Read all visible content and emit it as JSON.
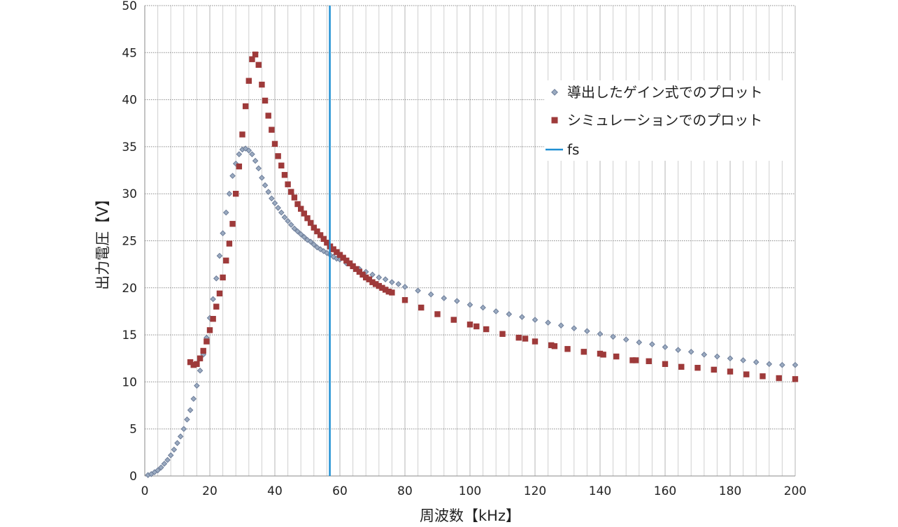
{
  "chart_data": {
    "type": "scatter",
    "title": "",
    "xlabel": "周波数【kHz】",
    "ylabel": "出力電圧【V】",
    "xlim": [
      0,
      200
    ],
    "ylim": [
      0,
      50
    ],
    "x_ticks": [
      0,
      20,
      40,
      60,
      80,
      100,
      120,
      140,
      160,
      180,
      200
    ],
    "y_ticks": [
      0,
      5,
      10,
      15,
      20,
      25,
      30,
      35,
      40,
      45,
      50
    ],
    "grid": true,
    "legend_position": "top-right",
    "series": [
      {
        "name": "導出したゲイン式でのプロット",
        "marker": "diamond",
        "color": "#9aaac0",
        "edge_color": "#6d7d99",
        "x": [
          1,
          2,
          3,
          4,
          5,
          6,
          7,
          8,
          9,
          10,
          11,
          12,
          13,
          14,
          15,
          16,
          17,
          18,
          19,
          20,
          21,
          22,
          23,
          24,
          25,
          26,
          27,
          28,
          29,
          30,
          31,
          32,
          33,
          34,
          35,
          36,
          37,
          38,
          39,
          40,
          41,
          42,
          43,
          44,
          45,
          46,
          47,
          48,
          49,
          50,
          51,
          52,
          53,
          54,
          55,
          56,
          57,
          58,
          59,
          60,
          62,
          64,
          66,
          68,
          70,
          72,
          74,
          76,
          78,
          80,
          84,
          88,
          92,
          96,
          100,
          104,
          108,
          112,
          116,
          120,
          124,
          128,
          132,
          136,
          140,
          144,
          148,
          152,
          156,
          160,
          164,
          168,
          172,
          176,
          180,
          184,
          188,
          192,
          196,
          200
        ],
        "y": [
          0.1,
          0.2,
          0.4,
          0.6,
          0.9,
          1.3,
          1.7,
          2.2,
          2.8,
          3.5,
          4.2,
          5.0,
          6.0,
          7.0,
          8.2,
          9.6,
          11.2,
          12.9,
          14.7,
          16.8,
          18.8,
          21.0,
          23.4,
          25.8,
          28.0,
          30.0,
          31.9,
          33.2,
          34.2,
          34.7,
          34.8,
          34.6,
          34.2,
          33.5,
          32.7,
          31.7,
          30.9,
          30.2,
          29.5,
          29.0,
          28.5,
          28.0,
          27.5,
          27.1,
          26.7,
          26.3,
          26.0,
          25.7,
          25.4,
          25.1,
          24.9,
          24.6,
          24.3,
          24.1,
          23.9,
          23.7,
          23.5,
          23.3,
          23.1,
          23.0,
          22.6,
          22.3,
          22.0,
          21.7,
          21.4,
          21.1,
          20.9,
          20.6,
          20.4,
          20.1,
          19.7,
          19.3,
          18.9,
          18.6,
          18.2,
          17.9,
          17.5,
          17.2,
          16.9,
          16.6,
          16.3,
          16.0,
          15.7,
          15.4,
          15.1,
          14.8,
          14.5,
          14.2,
          14.0,
          13.7,
          13.4,
          13.2,
          12.9,
          12.7,
          12.5,
          12.3,
          12.1,
          11.9,
          11.8,
          11.8
        ]
      },
      {
        "name": "シミュレーションでのプロット",
        "marker": "square",
        "color": "#9e3a3a",
        "x": [
          14,
          15,
          16,
          17,
          18,
          19,
          20,
          21,
          22,
          23,
          24,
          25,
          26,
          27,
          28,
          29,
          30,
          31,
          32,
          33,
          34,
          35,
          36,
          37,
          38,
          39,
          40,
          41,
          42,
          43,
          44,
          45,
          46,
          47,
          48,
          49,
          50,
          51,
          52,
          53,
          54,
          55,
          56,
          57,
          58,
          59,
          60,
          61,
          62,
          63,
          64,
          65,
          66,
          67,
          68,
          69,
          70,
          71,
          72,
          73,
          74,
          75,
          76,
          80,
          85,
          90,
          95,
          100,
          102,
          105,
          110,
          115,
          117,
          120,
          125,
          126,
          130,
          135,
          140,
          141,
          145,
          150,
          151,
          155,
          160,
          165,
          170,
          175,
          180,
          185,
          190,
          195,
          200
        ],
        "y": [
          12.1,
          11.8,
          11.9,
          12.5,
          13.3,
          14.3,
          15.5,
          16.7,
          18.0,
          19.4,
          21.1,
          22.9,
          24.7,
          26.8,
          30.0,
          32.9,
          36.3,
          39.3,
          42.0,
          44.3,
          44.8,
          43.7,
          41.6,
          39.9,
          38.3,
          36.8,
          35.3,
          34.0,
          33.0,
          32.0,
          31.0,
          30.2,
          29.6,
          28.9,
          28.4,
          27.9,
          27.4,
          26.9,
          26.4,
          26.0,
          25.6,
          25.2,
          24.8,
          24.4,
          24.1,
          23.8,
          23.5,
          23.2,
          22.9,
          22.6,
          22.3,
          22.0,
          21.7,
          21.4,
          21.1,
          20.9,
          20.6,
          20.4,
          20.2,
          20.0,
          19.8,
          19.6,
          19.5,
          18.7,
          17.9,
          17.2,
          16.6,
          16.1,
          15.9,
          15.6,
          15.1,
          14.7,
          14.6,
          14.3,
          13.9,
          13.8,
          13.5,
          13.2,
          13.0,
          12.9,
          12.7,
          12.3,
          12.3,
          12.2,
          11.9,
          11.6,
          11.5,
          11.3,
          11.1,
          10.8,
          10.6,
          10.4,
          10.3
        ]
      },
      {
        "name": "fs",
        "marker": "line",
        "color": "#1f8fd2",
        "x": [
          56.9,
          56.9
        ],
        "y": [
          0,
          50
        ]
      }
    ]
  }
}
